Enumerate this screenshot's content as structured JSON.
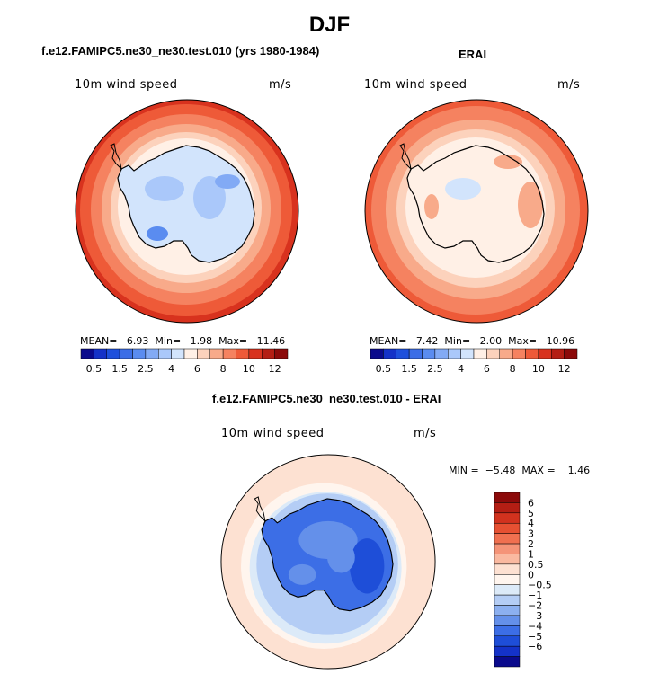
{
  "figure": {
    "title": "DJF"
  },
  "chart_data": [
    {
      "type": "heatmap",
      "title": "f.e12.FAMIPC5.ne30_ne30.test.010 (yrs 1980-1984)",
      "variable": "10m wind speed",
      "units": "m/s",
      "projection": "polar stereographic (Southern Hemisphere)",
      "stats": {
        "mean_label": "MEAN=",
        "mean": "6.93",
        "min_label": "Min=",
        "min": "1.98",
        "max_label": "Max=",
        "max": "11.46"
      },
      "colorbar": {
        "orientation": "horizontal",
        "levels": [
          "0.5",
          "1",
          "1.5",
          "2",
          "2.5",
          "3",
          "4",
          "5",
          "6",
          "7",
          "8",
          "9",
          "10",
          "11",
          "12"
        ],
        "tick_labels": [
          "0.5",
          "1.5",
          "2.5",
          "4",
          "6",
          "8",
          "10",
          "12"
        ],
        "colors": [
          "#0a0a8c",
          "#1432c8",
          "#1e50dc",
          "#3c6ee6",
          "#5a8cf0",
          "#82aaf5",
          "#aac8fa",
          "#d2e4fc",
          "#fff0e6",
          "#fcd2bc",
          "#f8aa8a",
          "#f58260",
          "#ee5a38",
          "#d8321e",
          "#b41e14",
          "#8c0a0a"
        ]
      }
    },
    {
      "type": "heatmap",
      "title": "ERAI",
      "variable": "10m wind speed",
      "units": "m/s",
      "projection": "polar stereographic (Southern Hemisphere)",
      "stats": {
        "mean_label": "MEAN=",
        "mean": "7.42",
        "min_label": "Min=",
        "min": "2.00",
        "max_label": "Max=",
        "max": "10.96"
      },
      "colorbar": {
        "orientation": "horizontal",
        "levels": [
          "0.5",
          "1",
          "1.5",
          "2",
          "2.5",
          "3",
          "4",
          "5",
          "6",
          "7",
          "8",
          "9",
          "10",
          "11",
          "12"
        ],
        "tick_labels": [
          "0.5",
          "1.5",
          "2.5",
          "4",
          "6",
          "8",
          "10",
          "12"
        ],
        "colors": [
          "#0a0a8c",
          "#1432c8",
          "#1e50dc",
          "#3c6ee6",
          "#5a8cf0",
          "#82aaf5",
          "#aac8fa",
          "#d2e4fc",
          "#fff0e6",
          "#fcd2bc",
          "#f8aa8a",
          "#f58260",
          "#ee5a38",
          "#d8321e",
          "#b41e14",
          "#8c0a0a"
        ]
      }
    },
    {
      "type": "heatmap",
      "title": "f.e12.FAMIPC5.ne30_ne30.test.010 - ERAI",
      "variable": "10m wind speed",
      "units": "m/s",
      "projection": "polar stereographic (Southern Hemisphere)",
      "stats": {
        "min_label": "MIN =",
        "min": "−5.48",
        "max_label": "MAX =",
        "max": "1.46"
      },
      "colorbar": {
        "orientation": "vertical",
        "tick_labels": [
          "6",
          "5",
          "4",
          "3",
          "2",
          "1",
          "0.5",
          "0",
          "−0.5",
          "−1",
          "−2",
          "−3",
          "−4",
          "−5",
          "−6"
        ],
        "colors": [
          "#8c0a0a",
          "#b41e14",
          "#d2321e",
          "#e65032",
          "#f07050",
          "#f59478",
          "#fab9a0",
          "#fde1d2",
          "#fff5ee",
          "#dceaf8",
          "#b4cdf5",
          "#8cb0f0",
          "#6490ea",
          "#3c6ee6",
          "#1e4ed8",
          "#1432c8",
          "#0a0a8c"
        ]
      }
    }
  ]
}
